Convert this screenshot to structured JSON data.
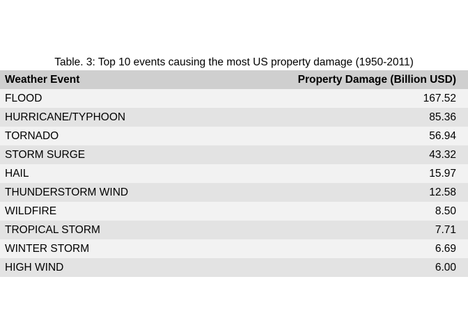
{
  "chart_data": {
    "type": "table",
    "title": "Table. 3: Top 10 events causing the most US property damage (1950-2011)",
    "columns": [
      "Weather Event",
      "Property Damage (Billion USD)"
    ],
    "rows": [
      [
        "FLOOD",
        "167.52"
      ],
      [
        "HURRICANE/TYPHOON",
        "85.36"
      ],
      [
        "TORNADO",
        "56.94"
      ],
      [
        "STORM SURGE",
        "43.32"
      ],
      [
        "HAIL",
        "15.97"
      ],
      [
        "THUNDERSTORM WIND",
        "12.58"
      ],
      [
        "WILDFIRE",
        "8.50"
      ],
      [
        "TROPICAL STORM",
        "7.71"
      ],
      [
        "WINTER STORM",
        "6.69"
      ],
      [
        "HIGH WIND",
        "6.00"
      ]
    ],
    "header_color": "#cfcfcf",
    "row_colors": [
      "#f2f2f2",
      "#e3e3e3"
    ]
  }
}
